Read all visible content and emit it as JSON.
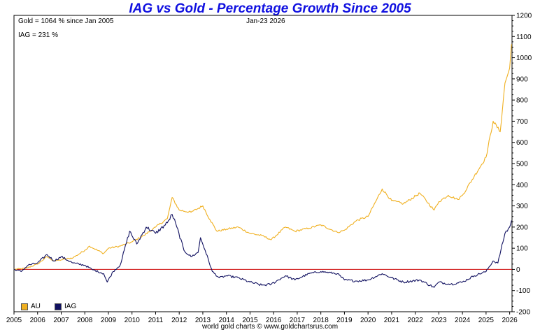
{
  "chart_data": {
    "type": "line",
    "title": "IAG vs Gold - Percentage Growth Since 2005",
    "annotations": {
      "gold_note": "Gold = 1064 % since Jan 2005",
      "iag_note": "IAG = 231 %",
      "date": "Jan-23  2026"
    },
    "footer": "world gold charts © www.goldchartsrus.com",
    "xlim": [
      2005.0,
      2026.1
    ],
    "ylim": [
      -200,
      1200
    ],
    "x_ticks": [
      "2005",
      "2006",
      "2007",
      "2008",
      "2009",
      "2010",
      "2011",
      "2012",
      "2013",
      "2014",
      "2015",
      "2016",
      "2017",
      "2018",
      "2019",
      "2020",
      "2021",
      "2022",
      "2023",
      "2024",
      "2025",
      "2026"
    ],
    "y_ticks": [
      "1200",
      "1100",
      "1000",
      "900",
      "800",
      "700",
      "600",
      "500",
      "400",
      "300",
      "200",
      "100",
      "0",
      "-100",
      "-200"
    ],
    "reference_line": {
      "y": 0,
      "color": "#cc0000"
    },
    "series": [
      {
        "name": "AU",
        "color": "#f0b020",
        "points": [
          [
            2005.0,
            0
          ],
          [
            2005.5,
            5
          ],
          [
            2006.0,
            25
          ],
          [
            2006.4,
            60
          ],
          [
            2006.7,
            40
          ],
          [
            2007.0,
            45
          ],
          [
            2007.5,
            55
          ],
          [
            2008.0,
            90
          ],
          [
            2008.2,
            110
          ],
          [
            2008.8,
            75
          ],
          [
            2009.0,
            100
          ],
          [
            2009.5,
            110
          ],
          [
            2010.0,
            130
          ],
          [
            2010.5,
            160
          ],
          [
            2011.0,
            200
          ],
          [
            2011.5,
            240
          ],
          [
            2011.7,
            340
          ],
          [
            2012.0,
            280
          ],
          [
            2012.5,
            270
          ],
          [
            2013.0,
            300
          ],
          [
            2013.3,
            235
          ],
          [
            2013.6,
            180
          ],
          [
            2014.0,
            190
          ],
          [
            2014.5,
            200
          ],
          [
            2015.0,
            170
          ],
          [
            2015.5,
            160
          ],
          [
            2015.9,
            140
          ],
          [
            2016.5,
            200
          ],
          [
            2016.9,
            180
          ],
          [
            2017.5,
            195
          ],
          [
            2018.0,
            210
          ],
          [
            2018.7,
            175
          ],
          [
            2019.0,
            185
          ],
          [
            2019.5,
            230
          ],
          [
            2020.0,
            250
          ],
          [
            2020.6,
            380
          ],
          [
            2021.0,
            325
          ],
          [
            2021.5,
            310
          ],
          [
            2022.2,
            360
          ],
          [
            2022.8,
            280
          ],
          [
            2023.0,
            320
          ],
          [
            2023.4,
            350
          ],
          [
            2023.8,
            330
          ],
          [
            2024.0,
            350
          ],
          [
            2024.5,
            440
          ],
          [
            2025.0,
            530
          ],
          [
            2025.3,
            700
          ],
          [
            2025.6,
            650
          ],
          [
            2025.8,
            880
          ],
          [
            2026.0,
            950
          ],
          [
            2026.08,
            1064
          ]
        ]
      },
      {
        "name": "IAG",
        "color": "#101060",
        "points": [
          [
            2005.0,
            0
          ],
          [
            2005.3,
            -10
          ],
          [
            2005.6,
            20
          ],
          [
            2006.0,
            30
          ],
          [
            2006.4,
            70
          ],
          [
            2006.7,
            40
          ],
          [
            2007.0,
            60
          ],
          [
            2007.5,
            30
          ],
          [
            2008.0,
            20
          ],
          [
            2008.3,
            0
          ],
          [
            2008.8,
            -20
          ],
          [
            2008.95,
            -60
          ],
          [
            2009.2,
            -10
          ],
          [
            2009.5,
            20
          ],
          [
            2009.9,
            180
          ],
          [
            2010.2,
            120
          ],
          [
            2010.6,
            200
          ],
          [
            2011.0,
            170
          ],
          [
            2011.5,
            220
          ],
          [
            2011.7,
            260
          ],
          [
            2011.9,
            200
          ],
          [
            2012.2,
            90
          ],
          [
            2012.5,
            60
          ],
          [
            2012.8,
            80
          ],
          [
            2012.9,
            150
          ],
          [
            2013.1,
            90
          ],
          [
            2013.4,
            -10
          ],
          [
            2013.7,
            -40
          ],
          [
            2014.0,
            -30
          ],
          [
            2014.5,
            -40
          ],
          [
            2015.0,
            -60
          ],
          [
            2015.5,
            -75
          ],
          [
            2015.9,
            -70
          ],
          [
            2016.5,
            -30
          ],
          [
            2016.9,
            -50
          ],
          [
            2017.5,
            -20
          ],
          [
            2018.0,
            -10
          ],
          [
            2018.7,
            -20
          ],
          [
            2019.0,
            -50
          ],
          [
            2019.5,
            -55
          ],
          [
            2020.0,
            -50
          ],
          [
            2020.6,
            -20
          ],
          [
            2021.0,
            -40
          ],
          [
            2021.5,
            -60
          ],
          [
            2022.2,
            -50
          ],
          [
            2022.8,
            -85
          ],
          [
            2023.0,
            -60
          ],
          [
            2023.5,
            -70
          ],
          [
            2024.0,
            -60
          ],
          [
            2024.5,
            -30
          ],
          [
            2025.0,
            -10
          ],
          [
            2025.3,
            40
          ],
          [
            2025.5,
            30
          ],
          [
            2025.8,
            170
          ],
          [
            2026.0,
            200
          ],
          [
            2026.08,
            231
          ]
        ]
      }
    ]
  }
}
